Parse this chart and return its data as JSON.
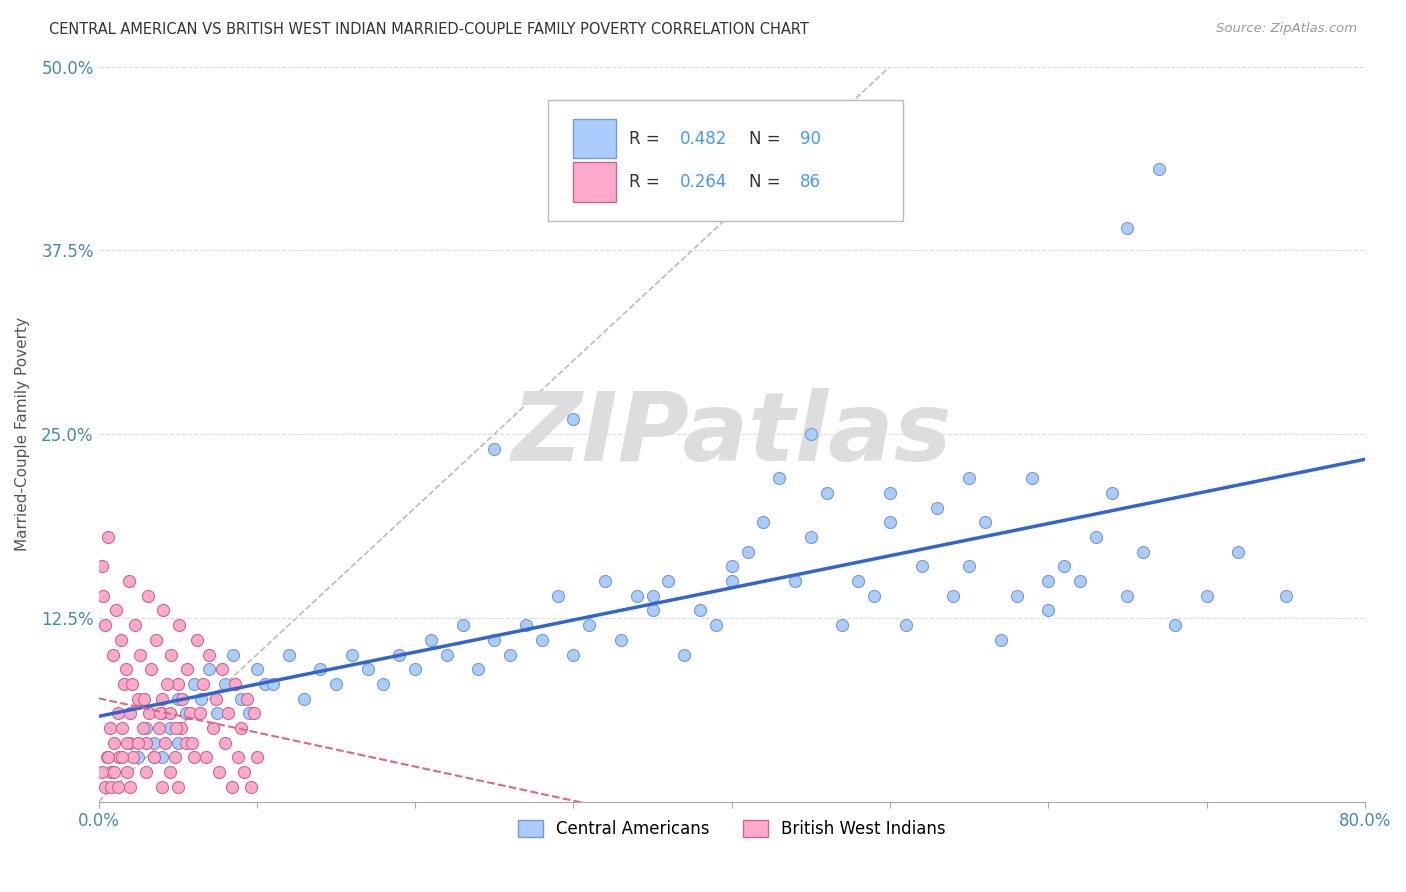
{
  "title": "CENTRAL AMERICAN VS BRITISH WEST INDIAN MARRIED-COUPLE FAMILY POVERTY CORRELATION CHART",
  "source": "Source: ZipAtlas.com",
  "ylabel": "Married-Couple Family Poverty",
  "xlim": [
    0,
    0.8
  ],
  "ylim": [
    0,
    0.5
  ],
  "xticks": [
    0.0,
    0.1,
    0.2,
    0.3,
    0.4,
    0.5,
    0.6,
    0.7,
    0.8
  ],
  "xticklabels": [
    "0.0%",
    "",
    "",
    "",
    "",
    "",
    "",
    "",
    "80.0%"
  ],
  "yticks": [
    0.0,
    0.125,
    0.25,
    0.375,
    0.5
  ],
  "yticklabels": [
    "",
    "12.5%",
    "25.0%",
    "37.5%",
    "50.0%"
  ],
  "blue_R": 0.482,
  "blue_N": 90,
  "pink_R": 0.264,
  "pink_N": 86,
  "blue_color": "#aaccff",
  "blue_edge": "#7799cc",
  "pink_color": "#ffaacc",
  "pink_edge": "#cc6688",
  "blue_line_color": "#3366cc",
  "pink_line_color": "#dd6688",
  "ref_line_color": "#bbbbbb",
  "watermark_color": "#dddddd",
  "watermark_text": "ZIPatlas",
  "legend_N_color": "#4499ff",
  "title_color": "#333333",
  "axis_color": "#4488bb",
  "blue_scatter_x": [
    0.02,
    0.025,
    0.03,
    0.035,
    0.04,
    0.04,
    0.045,
    0.05,
    0.05,
    0.055,
    0.06,
    0.065,
    0.07,
    0.075,
    0.08,
    0.085,
    0.09,
    0.095,
    0.1,
    0.105,
    0.11,
    0.12,
    0.13,
    0.14,
    0.15,
    0.16,
    0.17,
    0.18,
    0.19,
    0.2,
    0.21,
    0.22,
    0.23,
    0.24,
    0.25,
    0.26,
    0.27,
    0.28,
    0.29,
    0.3,
    0.31,
    0.32,
    0.33,
    0.34,
    0.35,
    0.36,
    0.37,
    0.38,
    0.39,
    0.4,
    0.41,
    0.42,
    0.43,
    0.44,
    0.45,
    0.46,
    0.47,
    0.48,
    0.49,
    0.5,
    0.51,
    0.52,
    0.53,
    0.54,
    0.55,
    0.56,
    0.57,
    0.58,
    0.59,
    0.6,
    0.61,
    0.62,
    0.63,
    0.64,
    0.65,
    0.66,
    0.67,
    0.68,
    0.7,
    0.72,
    0.25,
    0.3,
    0.35,
    0.4,
    0.45,
    0.5,
    0.55,
    0.6,
    0.65,
    0.75
  ],
  "blue_scatter_y": [
    0.04,
    0.03,
    0.05,
    0.04,
    0.06,
    0.03,
    0.05,
    0.07,
    0.04,
    0.06,
    0.08,
    0.07,
    0.09,
    0.06,
    0.08,
    0.1,
    0.07,
    0.06,
    0.09,
    0.08,
    0.08,
    0.1,
    0.07,
    0.09,
    0.08,
    0.1,
    0.09,
    0.08,
    0.1,
    0.09,
    0.11,
    0.1,
    0.12,
    0.09,
    0.11,
    0.1,
    0.12,
    0.11,
    0.14,
    0.1,
    0.12,
    0.15,
    0.11,
    0.14,
    0.13,
    0.15,
    0.1,
    0.13,
    0.12,
    0.15,
    0.17,
    0.19,
    0.22,
    0.15,
    0.18,
    0.21,
    0.12,
    0.15,
    0.14,
    0.21,
    0.12,
    0.16,
    0.2,
    0.14,
    0.16,
    0.19,
    0.11,
    0.14,
    0.22,
    0.13,
    0.16,
    0.15,
    0.18,
    0.21,
    0.14,
    0.17,
    0.43,
    0.12,
    0.14,
    0.17,
    0.24,
    0.26,
    0.14,
    0.16,
    0.25,
    0.19,
    0.22,
    0.15,
    0.39,
    0.14
  ],
  "pink_scatter_x": [
    0.005,
    0.007,
    0.008,
    0.01,
    0.012,
    0.013,
    0.015,
    0.016,
    0.018,
    0.02,
    0.022,
    0.025,
    0.028,
    0.03,
    0.032,
    0.035,
    0.038,
    0.04,
    0.042,
    0.045,
    0.048,
    0.05,
    0.052,
    0.055,
    0.058,
    0.06,
    0.002,
    0.003,
    0.004,
    0.006,
    0.009,
    0.011,
    0.014,
    0.017,
    0.019,
    0.021,
    0.023,
    0.026,
    0.029,
    0.031,
    0.033,
    0.036,
    0.039,
    0.041,
    0.043,
    0.046,
    0.049,
    0.051,
    0.053,
    0.056,
    0.059,
    0.062,
    0.064,
    0.066,
    0.068,
    0.07,
    0.072,
    0.074,
    0.076,
    0.078,
    0.08,
    0.082,
    0.084,
    0.086,
    0.088,
    0.09,
    0.092,
    0.094,
    0.096,
    0.098,
    0.1,
    0.002,
    0.004,
    0.006,
    0.008,
    0.01,
    0.012,
    0.015,
    0.018,
    0.02,
    0.025,
    0.03,
    0.035,
    0.04,
    0.045,
    0.05
  ],
  "pink_scatter_y": [
    0.03,
    0.05,
    0.02,
    0.04,
    0.06,
    0.03,
    0.05,
    0.08,
    0.04,
    0.06,
    0.03,
    0.07,
    0.05,
    0.04,
    0.06,
    0.03,
    0.05,
    0.07,
    0.04,
    0.06,
    0.03,
    0.08,
    0.05,
    0.04,
    0.06,
    0.03,
    0.16,
    0.14,
    0.12,
    0.18,
    0.1,
    0.13,
    0.11,
    0.09,
    0.15,
    0.08,
    0.12,
    0.1,
    0.07,
    0.14,
    0.09,
    0.11,
    0.06,
    0.13,
    0.08,
    0.1,
    0.05,
    0.12,
    0.07,
    0.09,
    0.04,
    0.11,
    0.06,
    0.08,
    0.03,
    0.1,
    0.05,
    0.07,
    0.02,
    0.09,
    0.04,
    0.06,
    0.01,
    0.08,
    0.03,
    0.05,
    0.02,
    0.07,
    0.01,
    0.06,
    0.03,
    0.02,
    0.01,
    0.03,
    0.01,
    0.02,
    0.01,
    0.03,
    0.02,
    0.01,
    0.04,
    0.02,
    0.03,
    0.01,
    0.02,
    0.01
  ]
}
